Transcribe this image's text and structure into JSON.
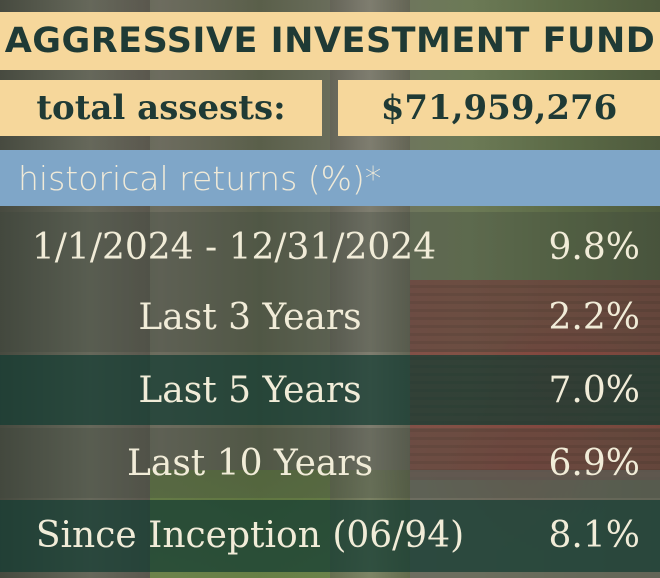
{
  "title": "AGGRESSIVE INVESTMENT FUND",
  "assets": {
    "label": "total assests:",
    "value": "$71,959,276"
  },
  "returns_header": "historical returns (%)*",
  "returns": [
    {
      "period": "1/1/2024 - 12/31/2024",
      "value": "9.8%"
    },
    {
      "period": "Last 3 Years",
      "value": "2.2%"
    },
    {
      "period": "Last 5 Years",
      "value": "7.0%"
    },
    {
      "period": "Last 10 Years",
      "value": "6.9%"
    },
    {
      "period": "Since Inception (06/94)",
      "value": "8.1%"
    }
  ],
  "colors": {
    "banner": "#f6d79b",
    "banner_text": "#1f3a35",
    "header_bar": "#7fa6c8",
    "row_dark": "#143c32",
    "row_text": "#f1ecd8"
  }
}
